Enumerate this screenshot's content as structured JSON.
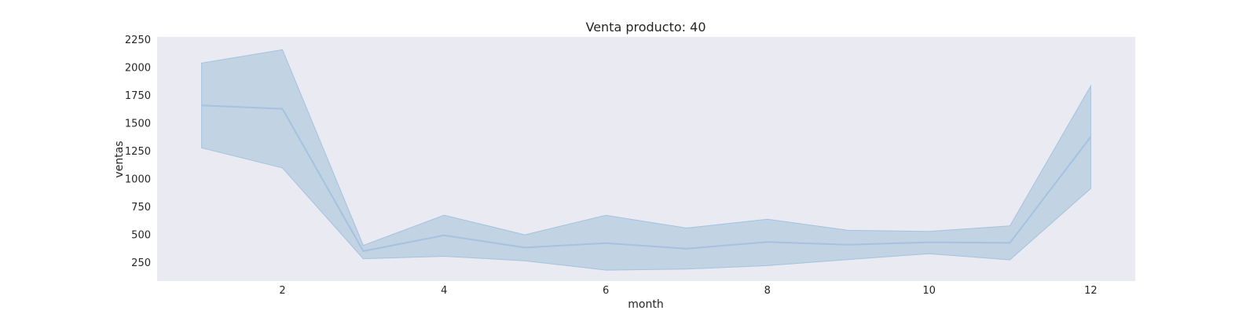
{
  "chart_data": {
    "type": "line",
    "title": "Venta producto: 40",
    "xlabel": "month",
    "ylabel": "ventas",
    "xlim": [
      0.45,
      12.55
    ],
    "ylim": [
      90,
      2280
    ],
    "xticks": [
      2,
      4,
      6,
      8,
      10,
      12
    ],
    "yticks": [
      250,
      500,
      750,
      1000,
      1250,
      1500,
      1750,
      2000,
      2250
    ],
    "grid": false,
    "colors": {
      "plot_bg": "#eaeaf2",
      "line": "#a5c2df",
      "band": "#c2d3e4",
      "band_edge": "#a5c2df"
    },
    "series": [
      {
        "x": [
          1,
          2,
          3,
          4,
          5,
          6,
          7,
          8,
          9,
          10,
          11,
          12
        ],
        "values": [
          1665,
          1635,
          358,
          500,
          390,
          430,
          380,
          440,
          415,
          438,
          432,
          1385
        ],
        "lower": [
          1285,
          1105,
          290,
          312,
          272,
          188,
          198,
          228,
          283,
          335,
          280,
          920
        ],
        "upper": [
          2045,
          2165,
          410,
          680,
          505,
          680,
          565,
          645,
          545,
          535,
          585,
          1840
        ]
      }
    ]
  }
}
